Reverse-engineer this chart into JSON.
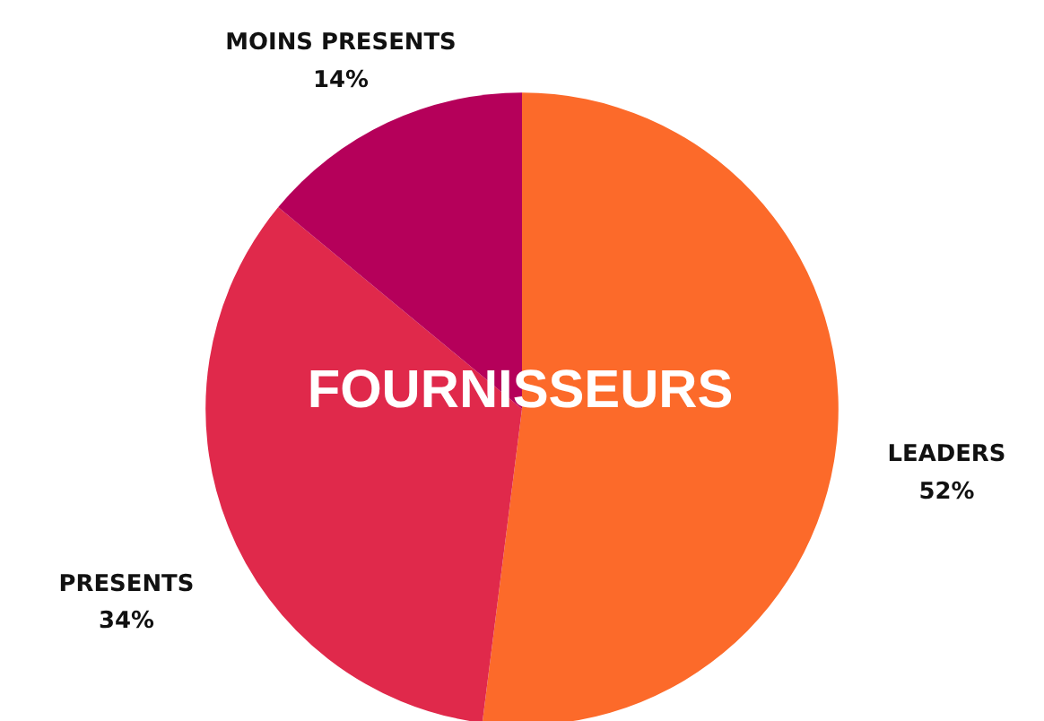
{
  "chart_data": {
    "type": "pie",
    "categories": [
      "LEADERS",
      "PRESENTS",
      "MOINS PRESENTS"
    ],
    "values": [
      52,
      34,
      14
    ],
    "colors": [
      "#fc6a2a",
      "#e0294b",
      "#b5005a"
    ],
    "value_labels": [
      "52%",
      "34%",
      "14%"
    ],
    "annotations": [
      "FOURNISSEURS"
    ]
  }
}
